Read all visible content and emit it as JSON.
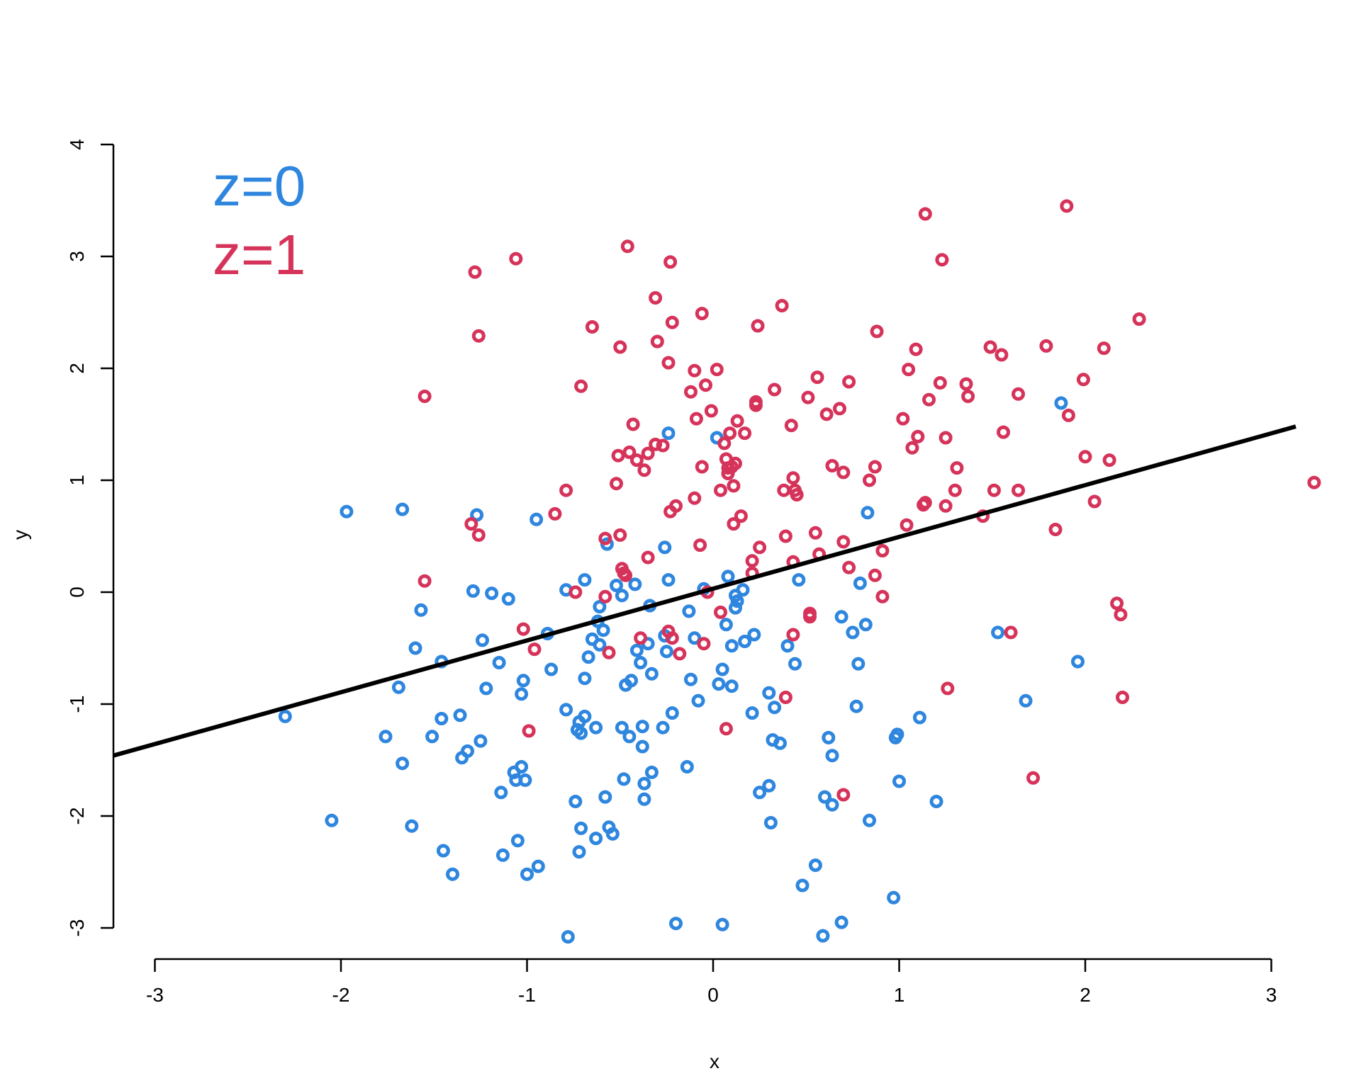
{
  "chart_data": {
    "type": "scatter",
    "xlabel": "x",
    "ylabel": "y",
    "xlim": [
      -3.3,
      3.3
    ],
    "ylim": [
      -3.2,
      4.0
    ],
    "xticks": [
      -3,
      -2,
      -1,
      0,
      1,
      2,
      3
    ],
    "yticks": [
      -3,
      -2,
      -1,
      0,
      1,
      2,
      3,
      4
    ],
    "grid": false,
    "legend": {
      "placement": "top-left",
      "entries": [
        {
          "label": "z=0",
          "color": "#2E86DE"
        },
        {
          "label": "z=1",
          "color": "#D6335A"
        }
      ]
    },
    "line": {
      "color": "#000000",
      "x1": -3.3,
      "y1": -1.46,
      "x2": 3.3,
      "y2": 1.48
    },
    "series": [
      {
        "name": "z=0",
        "color": "#2E86DE",
        "points": [
          [
            -2.3,
            -1.11
          ],
          [
            -2.05,
            -2.04
          ],
          [
            -1.97,
            0.72
          ],
          [
            -1.76,
            -1.29
          ],
          [
            -1.69,
            -0.85
          ],
          [
            -1.67,
            0.74
          ],
          [
            -1.67,
            -1.53
          ],
          [
            -1.62,
            -2.09
          ],
          [
            -1.6,
            -0.5
          ],
          [
            -1.57,
            -0.16
          ],
          [
            -1.51,
            -1.29
          ],
          [
            -1.46,
            -0.62
          ],
          [
            -1.46,
            -1.13
          ],
          [
            -1.45,
            -2.31
          ],
          [
            -1.4,
            -2.52
          ],
          [
            -1.36,
            -1.1
          ],
          [
            -1.35,
            -1.48
          ],
          [
            -1.32,
            -1.42
          ],
          [
            -1.29,
            0.01
          ],
          [
            -1.27,
            0.69
          ],
          [
            -1.25,
            -1.33
          ],
          [
            -1.24,
            -0.43
          ],
          [
            -1.22,
            -0.86
          ],
          [
            -1.19,
            -0.01
          ],
          [
            -1.15,
            -0.63
          ],
          [
            -1.14,
            -1.79
          ],
          [
            -1.13,
            -2.35
          ],
          [
            -1.1,
            -0.06
          ],
          [
            -1.07,
            -1.61
          ],
          [
            -1.06,
            -1.68
          ],
          [
            -1.05,
            -2.22
          ],
          [
            -1.03,
            -1.56
          ],
          [
            -1.03,
            -0.91
          ],
          [
            -1.02,
            -0.79
          ],
          [
            -1.01,
            -1.68
          ],
          [
            -1.0,
            -2.52
          ],
          [
            -0.95,
            0.65
          ],
          [
            -0.94,
            -2.45
          ],
          [
            -0.89,
            -0.37
          ],
          [
            -0.87,
            -0.69
          ],
          [
            -0.79,
            0.02
          ],
          [
            -0.79,
            -1.05
          ],
          [
            -0.78,
            -3.08
          ],
          [
            -0.74,
            -1.87
          ],
          [
            -0.73,
            -1.23
          ],
          [
            -0.72,
            -1.16
          ],
          [
            -0.72,
            -2.32
          ],
          [
            -0.71,
            -1.26
          ],
          [
            -0.71,
            -2.11
          ],
          [
            -0.69,
            -1.11
          ],
          [
            -0.69,
            0.11
          ],
          [
            -0.69,
            -0.77
          ],
          [
            -0.67,
            -0.58
          ],
          [
            -0.65,
            -0.42
          ],
          [
            -0.63,
            -1.21
          ],
          [
            -0.63,
            -2.2
          ],
          [
            -0.62,
            -0.26
          ],
          [
            -0.61,
            -0.13
          ],
          [
            -0.61,
            -0.47
          ],
          [
            -0.59,
            -0.34
          ],
          [
            -0.58,
            -1.83
          ],
          [
            -0.57,
            0.43
          ],
          [
            -0.56,
            -2.1
          ],
          [
            -0.54,
            -2.16
          ],
          [
            -0.52,
            0.06
          ],
          [
            -0.49,
            -0.03
          ],
          [
            -0.49,
            -1.21
          ],
          [
            -0.48,
            -1.67
          ],
          [
            -0.47,
            -0.83
          ],
          [
            -0.45,
            -1.29
          ],
          [
            -0.44,
            -0.79
          ],
          [
            -0.42,
            0.07
          ],
          [
            -0.41,
            -0.52
          ],
          [
            -0.39,
            -0.63
          ],
          [
            -0.38,
            -1.2
          ],
          [
            -0.38,
            -1.38
          ],
          [
            -0.37,
            -1.71
          ],
          [
            -0.37,
            -1.85
          ],
          [
            -0.35,
            -0.46
          ],
          [
            -0.34,
            -0.12
          ],
          [
            -0.33,
            -0.73
          ],
          [
            -0.33,
            -1.61
          ],
          [
            -0.27,
            -1.21
          ],
          [
            -0.26,
            0.4
          ],
          [
            -0.26,
            -0.39
          ],
          [
            -0.25,
            -0.53
          ],
          [
            -0.24,
            1.42
          ],
          [
            -0.24,
            0.11
          ],
          [
            -0.22,
            -1.08
          ],
          [
            -0.2,
            -2.96
          ],
          [
            -0.14,
            -1.56
          ],
          [
            -0.13,
            -0.17
          ],
          [
            -0.12,
            -0.78
          ],
          [
            -0.1,
            -0.41
          ],
          [
            -0.08,
            -0.97
          ],
          [
            -0.05,
            0.03
          ],
          [
            0.02,
            1.38
          ],
          [
            0.03,
            -0.82
          ],
          [
            0.05,
            -0.69
          ],
          [
            0.05,
            -2.97
          ],
          [
            0.07,
            -0.29
          ],
          [
            0.08,
            0.14
          ],
          [
            0.1,
            -0.48
          ],
          [
            0.1,
            -0.84
          ],
          [
            0.12,
            -0.03
          ],
          [
            0.12,
            -0.14
          ],
          [
            0.13,
            -0.08
          ],
          [
            0.16,
            0.02
          ],
          [
            0.17,
            -0.44
          ],
          [
            0.21,
            -1.08
          ],
          [
            0.22,
            -0.38
          ],
          [
            0.25,
            -1.79
          ],
          [
            0.3,
            -0.9
          ],
          [
            0.3,
            -1.73
          ],
          [
            0.31,
            -2.06
          ],
          [
            0.32,
            -1.32
          ],
          [
            0.33,
            -1.03
          ],
          [
            0.36,
            -1.35
          ],
          [
            0.4,
            -0.48
          ],
          [
            0.44,
            -0.64
          ],
          [
            0.46,
            0.11
          ],
          [
            0.48,
            -2.62
          ],
          [
            0.55,
            -2.44
          ],
          [
            0.59,
            -3.07
          ],
          [
            0.6,
            -1.83
          ],
          [
            0.62,
            -1.3
          ],
          [
            0.64,
            -1.46
          ],
          [
            0.64,
            -1.9
          ],
          [
            0.69,
            -0.22
          ],
          [
            0.69,
            -2.95
          ],
          [
            0.75,
            -0.36
          ],
          [
            0.77,
            -1.02
          ],
          [
            0.78,
            -0.64
          ],
          [
            0.79,
            0.08
          ],
          [
            0.82,
            -0.29
          ],
          [
            0.83,
            0.71
          ],
          [
            0.84,
            -2.04
          ],
          [
            0.97,
            -2.73
          ],
          [
            0.98,
            -1.3
          ],
          [
            0.99,
            -1.27
          ],
          [
            1.0,
            -1.69
          ],
          [
            1.11,
            -1.12
          ],
          [
            1.2,
            -1.87
          ],
          [
            1.53,
            -0.36
          ],
          [
            1.68,
            -0.97
          ],
          [
            1.87,
            1.69
          ],
          [
            1.96,
            -0.62
          ]
        ]
      },
      {
        "name": "z=1",
        "color": "#D6335A",
        "points": [
          [
            -1.55,
            1.75
          ],
          [
            -1.55,
            0.1
          ],
          [
            -1.3,
            0.61
          ],
          [
            -1.28,
            2.86
          ],
          [
            -1.26,
            2.29
          ],
          [
            -1.26,
            0.51
          ],
          [
            -1.06,
            2.98
          ],
          [
            -1.02,
            -0.33
          ],
          [
            -0.99,
            -1.24
          ],
          [
            -0.96,
            -0.51
          ],
          [
            -0.85,
            0.7
          ],
          [
            -0.79,
            0.91
          ],
          [
            -0.74,
            0.0
          ],
          [
            -0.71,
            1.84
          ],
          [
            -0.65,
            2.37
          ],
          [
            -0.58,
            0.48
          ],
          [
            -0.58,
            -0.04
          ],
          [
            -0.56,
            -0.54
          ],
          [
            -0.52,
            0.97
          ],
          [
            -0.51,
            1.22
          ],
          [
            -0.5,
            2.19
          ],
          [
            -0.5,
            0.51
          ],
          [
            -0.49,
            0.21
          ],
          [
            -0.48,
            0.17
          ],
          [
            -0.47,
            0.15
          ],
          [
            -0.46,
            3.09
          ],
          [
            -0.45,
            1.25
          ],
          [
            -0.43,
            1.5
          ],
          [
            -0.41,
            1.18
          ],
          [
            -0.39,
            -0.41
          ],
          [
            -0.37,
            1.09
          ],
          [
            -0.35,
            1.24
          ],
          [
            -0.35,
            0.31
          ],
          [
            -0.31,
            1.32
          ],
          [
            -0.31,
            2.63
          ],
          [
            -0.3,
            2.24
          ],
          [
            -0.27,
            1.31
          ],
          [
            -0.24,
            2.05
          ],
          [
            -0.24,
            -0.35
          ],
          [
            -0.23,
            0.72
          ],
          [
            -0.23,
            2.95
          ],
          [
            -0.22,
            2.41
          ],
          [
            -0.22,
            -0.41
          ],
          [
            -0.2,
            0.77
          ],
          [
            -0.18,
            -0.55
          ],
          [
            -0.12,
            1.79
          ],
          [
            -0.1,
            0.84
          ],
          [
            -0.1,
            1.98
          ],
          [
            -0.09,
            1.55
          ],
          [
            -0.07,
            0.42
          ],
          [
            -0.06,
            2.49
          ],
          [
            -0.06,
            1.12
          ],
          [
            -0.05,
            -0.46
          ],
          [
            -0.04,
            1.85
          ],
          [
            -0.03,
            0.0
          ],
          [
            -0.01,
            1.62
          ],
          [
            0.02,
            1.99
          ],
          [
            0.04,
            -0.18
          ],
          [
            0.04,
            0.91
          ],
          [
            0.06,
            1.33
          ],
          [
            0.07,
            1.19
          ],
          [
            0.07,
            -1.22
          ],
          [
            0.08,
            1.06
          ],
          [
            0.08,
            1.11
          ],
          [
            0.09,
            1.42
          ],
          [
            0.1,
            1.12
          ],
          [
            0.11,
            0.61
          ],
          [
            0.11,
            0.95
          ],
          [
            0.12,
            1.15
          ],
          [
            0.13,
            1.53
          ],
          [
            0.15,
            0.68
          ],
          [
            0.17,
            1.42
          ],
          [
            0.21,
            0.28
          ],
          [
            0.21,
            0.17
          ],
          [
            0.23,
            1.7
          ],
          [
            0.23,
            1.67
          ],
          [
            0.24,
            2.38
          ],
          [
            0.25,
            0.4
          ],
          [
            0.33,
            1.81
          ],
          [
            0.37,
            2.56
          ],
          [
            0.38,
            0.91
          ],
          [
            0.39,
            0.5
          ],
          [
            0.39,
            -0.94
          ],
          [
            0.42,
            1.49
          ],
          [
            0.43,
            1.02
          ],
          [
            0.43,
            0.27
          ],
          [
            0.43,
            -0.38
          ],
          [
            0.44,
            0.91
          ],
          [
            0.45,
            0.87
          ],
          [
            0.51,
            1.74
          ],
          [
            0.52,
            -0.19
          ],
          [
            0.52,
            -0.22
          ],
          [
            0.55,
            0.53
          ],
          [
            0.56,
            1.92
          ],
          [
            0.57,
            0.34
          ],
          [
            0.61,
            1.59
          ],
          [
            0.64,
            1.13
          ],
          [
            0.68,
            1.64
          ],
          [
            0.7,
            1.07
          ],
          [
            0.7,
            0.45
          ],
          [
            0.7,
            -1.81
          ],
          [
            0.73,
            1.88
          ],
          [
            0.73,
            0.22
          ],
          [
            0.84,
            1.0
          ],
          [
            0.87,
            1.12
          ],
          [
            0.87,
            0.15
          ],
          [
            0.88,
            2.33
          ],
          [
            0.91,
            0.37
          ],
          [
            0.91,
            -0.04
          ],
          [
            1.02,
            1.55
          ],
          [
            1.04,
            0.6
          ],
          [
            1.05,
            1.99
          ],
          [
            1.07,
            1.29
          ],
          [
            1.09,
            2.17
          ],
          [
            1.1,
            1.39
          ],
          [
            1.13,
            0.78
          ],
          [
            1.14,
            3.38
          ],
          [
            1.14,
            0.8
          ],
          [
            1.16,
            1.72
          ],
          [
            1.22,
            1.87
          ],
          [
            1.23,
            2.97
          ],
          [
            1.25,
            1.38
          ],
          [
            1.25,
            0.77
          ],
          [
            1.26,
            -0.86
          ],
          [
            1.3,
            0.91
          ],
          [
            1.31,
            1.11
          ],
          [
            1.36,
            1.86
          ],
          [
            1.37,
            1.75
          ],
          [
            1.45,
            0.68
          ],
          [
            1.49,
            2.19
          ],
          [
            1.51,
            0.91
          ],
          [
            1.55,
            2.12
          ],
          [
            1.56,
            1.43
          ],
          [
            1.6,
            -0.36
          ],
          [
            1.64,
            1.77
          ],
          [
            1.64,
            0.91
          ],
          [
            1.72,
            -1.66
          ],
          [
            1.79,
            2.2
          ],
          [
            1.84,
            0.56
          ],
          [
            1.9,
            3.45
          ],
          [
            1.91,
            1.58
          ],
          [
            1.99,
            1.9
          ],
          [
            2.0,
            1.21
          ],
          [
            2.05,
            0.81
          ],
          [
            2.1,
            2.18
          ],
          [
            2.13,
            1.18
          ],
          [
            2.17,
            -0.1
          ],
          [
            2.19,
            -0.2
          ],
          [
            2.2,
            -0.94
          ],
          [
            2.29,
            2.44
          ],
          [
            3.23,
            0.98
          ]
        ]
      }
    ]
  }
}
